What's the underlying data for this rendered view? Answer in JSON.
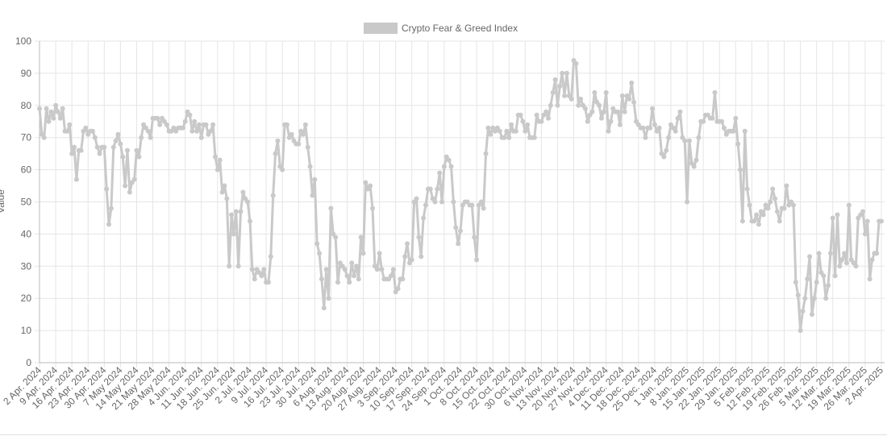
{
  "chart_data": {
    "type": "line",
    "ylabel": "Value",
    "ylim": [
      0,
      100
    ],
    "yticks": [
      0,
      10,
      20,
      30,
      40,
      50,
      60,
      70,
      80,
      90,
      100
    ],
    "grid": true,
    "legend": "top",
    "categories": [
      "2 Apr. 2024",
      null,
      null,
      null,
      null,
      null,
      null,
      "9 Apr. 2024",
      null,
      null,
      null,
      null,
      null,
      null,
      "16 Apr. 2024",
      null,
      null,
      null,
      null,
      null,
      null,
      "23 Apr. 2024",
      null,
      null,
      null,
      null,
      null,
      null,
      "30 Apr. 2024",
      null,
      null,
      null,
      null,
      null,
      null,
      "7 May 2024",
      null,
      null,
      null,
      null,
      null,
      null,
      "14 May 2024",
      null,
      null,
      null,
      null,
      null,
      null,
      "21 May 2024",
      null,
      null,
      null,
      null,
      null,
      null,
      "28 May 2024",
      null,
      null,
      null,
      null,
      null,
      null,
      "4 Jun. 2024",
      null,
      null,
      null,
      null,
      null,
      null,
      "11 Jun. 2024",
      null,
      null,
      null,
      null,
      null,
      null,
      "18 Jun. 2024",
      null,
      null,
      null,
      null,
      null,
      null,
      "25 Jun. 2024",
      null,
      null,
      null,
      null,
      null,
      null,
      "2 Jul. 2024",
      null,
      null,
      null,
      null,
      null,
      null,
      "9 Jul. 2024",
      null,
      null,
      null,
      null,
      null,
      null,
      "16 Jul. 2024",
      null,
      null,
      null,
      null,
      null,
      null,
      "23 Jul. 2024",
      null,
      null,
      null,
      null,
      null,
      null,
      "30 Jul. 2024",
      null,
      null,
      null,
      null,
      null,
      null,
      "6 Aug. 2024",
      null,
      null,
      null,
      null,
      null,
      null,
      "13 Aug. 2024",
      null,
      null,
      null,
      null,
      null,
      null,
      "20 Aug. 2024",
      null,
      null,
      null,
      null,
      null,
      null,
      "27 Aug. 2024",
      null,
      null,
      null,
      null,
      null,
      null,
      "3 Sep. 2024",
      null,
      null,
      null,
      null,
      null,
      null,
      "10 Sep. 2024",
      null,
      null,
      null,
      null,
      null,
      null,
      "17 Sep. 2024",
      null,
      null,
      null,
      null,
      null,
      null,
      "24 Sep. 2024",
      null,
      null,
      null,
      null,
      null,
      null,
      "1 Oct. 2024",
      null,
      null,
      null,
      null,
      null,
      null,
      "8 Oct. 2024",
      null,
      null,
      null,
      null,
      null,
      null,
      "15 Oct. 2024",
      null,
      null,
      null,
      null,
      null,
      null,
      "22 Oct. 2024",
      null,
      null,
      null,
      null,
      null,
      null,
      "30 Oct. 2024",
      null,
      null,
      null,
      null,
      null,
      null,
      "6 Nov. 2024",
      null,
      null,
      null,
      null,
      null,
      null,
      "13 Nov. 2024",
      null,
      null,
      null,
      null,
      null,
      null,
      "20 Nov. 2024",
      null,
      null,
      null,
      null,
      null,
      null,
      "27 Nov. 2024",
      null,
      null,
      null,
      null,
      null,
      null,
      "4 Dec. 2024",
      null,
      null,
      null,
      null,
      null,
      null,
      "11 Dec. 2024",
      null,
      null,
      null,
      null,
      null,
      null,
      "18 Dec. 2024",
      null,
      null,
      null,
      null,
      null,
      null,
      "25 Dec. 2024",
      null,
      null,
      null,
      null,
      null,
      null,
      "1 Jan. 2025",
      null,
      null,
      null,
      null,
      null,
      null,
      "8 Jan. 2025",
      null,
      null,
      null,
      null,
      null,
      null,
      "15 Jan. 2025",
      null,
      null,
      null,
      null,
      null,
      null,
      "22 Jan. 2025",
      null,
      null,
      null,
      null,
      null,
      null,
      "29 Jan. 2025",
      null,
      null,
      null,
      null,
      null,
      null,
      "5 Feb. 2025",
      null,
      null,
      null,
      null,
      null,
      null,
      "12 Feb. 2025",
      null,
      null,
      null,
      null,
      null,
      null,
      "19 Feb. 2025",
      null,
      null,
      null,
      null,
      null,
      null,
      "26 Feb. 2025",
      null,
      null,
      null,
      null,
      null,
      null,
      "5 Mar. 2025",
      null,
      null,
      null,
      null,
      null,
      null,
      "12 Mar. 2025",
      null,
      null,
      null,
      null,
      null,
      null,
      "19 Mar. 2025",
      null,
      null,
      null,
      null,
      null,
      null,
      "26 Mar. 2025",
      null,
      null,
      null,
      null,
      null,
      null,
      "2 Apr. 2025"
    ],
    "series": [
      {
        "name": "Crypto Fear & Greed Index",
        "color": "#c9c9c9",
        "values": [
          79,
          71,
          70,
          79,
          75,
          78,
          76,
          80,
          78,
          76,
          79,
          72,
          72,
          74,
          65,
          67,
          57,
          66,
          66,
          72,
          73,
          71,
          72,
          72,
          70,
          67,
          65,
          67,
          67,
          54,
          43,
          48,
          67,
          69,
          71,
          68,
          64,
          55,
          66,
          53,
          56,
          57,
          66,
          64,
          70,
          74,
          73,
          72,
          70,
          76,
          76,
          76,
          74,
          76,
          75,
          74,
          72,
          72,
          73,
          72,
          73,
          73,
          73,
          75,
          78,
          77,
          72,
          75,
          72,
          74,
          70,
          74,
          74,
          71,
          72,
          74,
          64,
          60,
          63,
          53,
          55,
          51,
          30,
          46,
          40,
          47,
          30,
          47,
          53,
          51,
          50,
          44,
          29,
          26,
          29,
          28,
          27,
          29,
          25,
          25,
          33,
          52,
          65,
          69,
          61,
          60,
          74,
          74,
          70,
          71,
          69,
          68,
          68,
          72,
          71,
          74,
          67,
          61,
          52,
          57,
          37,
          34,
          26,
          17,
          29,
          20,
          48,
          40,
          39,
          25,
          31,
          30,
          29,
          27,
          25,
          31,
          27,
          30,
          26,
          39,
          34,
          56,
          54,
          55,
          48,
          30,
          29,
          34,
          29,
          26,
          26,
          26,
          27,
          29,
          22,
          23,
          26,
          26,
          33,
          37,
          31,
          32,
          50,
          51,
          39,
          33,
          45,
          49,
          54,
          54,
          51,
          50,
          54,
          59,
          50,
          61,
          64,
          63,
          61,
          50,
          42,
          37,
          41,
          49,
          50,
          50,
          49,
          49,
          39,
          32,
          49,
          50,
          48,
          65,
          73,
          71,
          73,
          72,
          73,
          72,
          70,
          70,
          72,
          70,
          74,
          72,
          72,
          77,
          77,
          75,
          72,
          74,
          70,
          70,
          70,
          77,
          75,
          75,
          77,
          78,
          76,
          80,
          84,
          88,
          80,
          86,
          90,
          83,
          90,
          83,
          82,
          94,
          93,
          80,
          82,
          80,
          79,
          75,
          77,
          78,
          84,
          81,
          80,
          76,
          78,
          84,
          72,
          75,
          79,
          78,
          78,
          74,
          83,
          78,
          83,
          82,
          87,
          81,
          75,
          74,
          73,
          73,
          70,
          73,
          73,
          79,
          74,
          72,
          73,
          65,
          64,
          66,
          70,
          74,
          73,
          72,
          76,
          78,
          70,
          69,
          50,
          69,
          62,
          61,
          63,
          70,
          75,
          75,
          77,
          77,
          76,
          76,
          84,
          75,
          75,
          75,
          73,
          71,
          72,
          72,
          72,
          76,
          68,
          60,
          44,
          72,
          54,
          49,
          44,
          44,
          46,
          43,
          47,
          46,
          49,
          48,
          50,
          54,
          51,
          47,
          44,
          48,
          48,
          55,
          49,
          50,
          49,
          25,
          21,
          10,
          16,
          20,
          26,
          33,
          15,
          20,
          25,
          34,
          28,
          27,
          20,
          24,
          34,
          45,
          27,
          46,
          30,
          32,
          34,
          31,
          49,
          32,
          31,
          30,
          45,
          46,
          47,
          40,
          44,
          26,
          32,
          34,
          34,
          44,
          44
        ]
      }
    ]
  }
}
